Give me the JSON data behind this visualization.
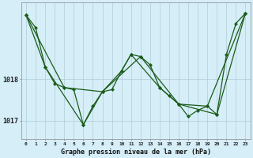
{
  "xlabel": "Graphe pression niveau de la mer (hPa)",
  "bg_color": "#d6eef8",
  "grid_color": "#b0ccd8",
  "line_color": "#1a5c1a",
  "marker_color": "#1a5c1a",
  "x": [
    0,
    1,
    2,
    3,
    4,
    5,
    6,
    7,
    8,
    9,
    10,
    11,
    12,
    13,
    14,
    15,
    16,
    17,
    18,
    19,
    20,
    21,
    22,
    23
  ],
  "series1": [
    1019.55,
    1019.25,
    1018.3,
    1017.9,
    1017.8,
    1017.75,
    1016.9,
    1017.35,
    1017.7,
    1017.75,
    1018.2,
    1018.6,
    1018.55,
    1018.35,
    1017.8,
    1017.6,
    1017.4,
    1017.1,
    1017.25,
    1017.35,
    1017.15,
    1018.6,
    1019.35,
    1019.6
  ],
  "series2_x": [
    0,
    2,
    6,
    8,
    10,
    11,
    14,
    16,
    19,
    23
  ],
  "series2_y": [
    1019.55,
    1018.3,
    1016.9,
    1017.7,
    1018.2,
    1018.6,
    1017.8,
    1017.4,
    1017.35,
    1019.6
  ],
  "series3_x": [
    0,
    4,
    8,
    12,
    16,
    20,
    23
  ],
  "series3_y": [
    1019.55,
    1017.8,
    1017.7,
    1018.55,
    1017.4,
    1017.15,
    1019.6
  ],
  "ylim_min": 1016.55,
  "ylim_max": 1019.85,
  "yticks": [
    1017,
    1018
  ],
  "xtick_labels": [
    "0",
    "1",
    "2",
    "3",
    "4",
    "5",
    "6",
    "7",
    "8",
    "9",
    "10",
    "11",
    "12",
    "13",
    "14",
    "15",
    "16",
    "17",
    "18",
    "19",
    "20",
    "21",
    "22",
    "23"
  ]
}
